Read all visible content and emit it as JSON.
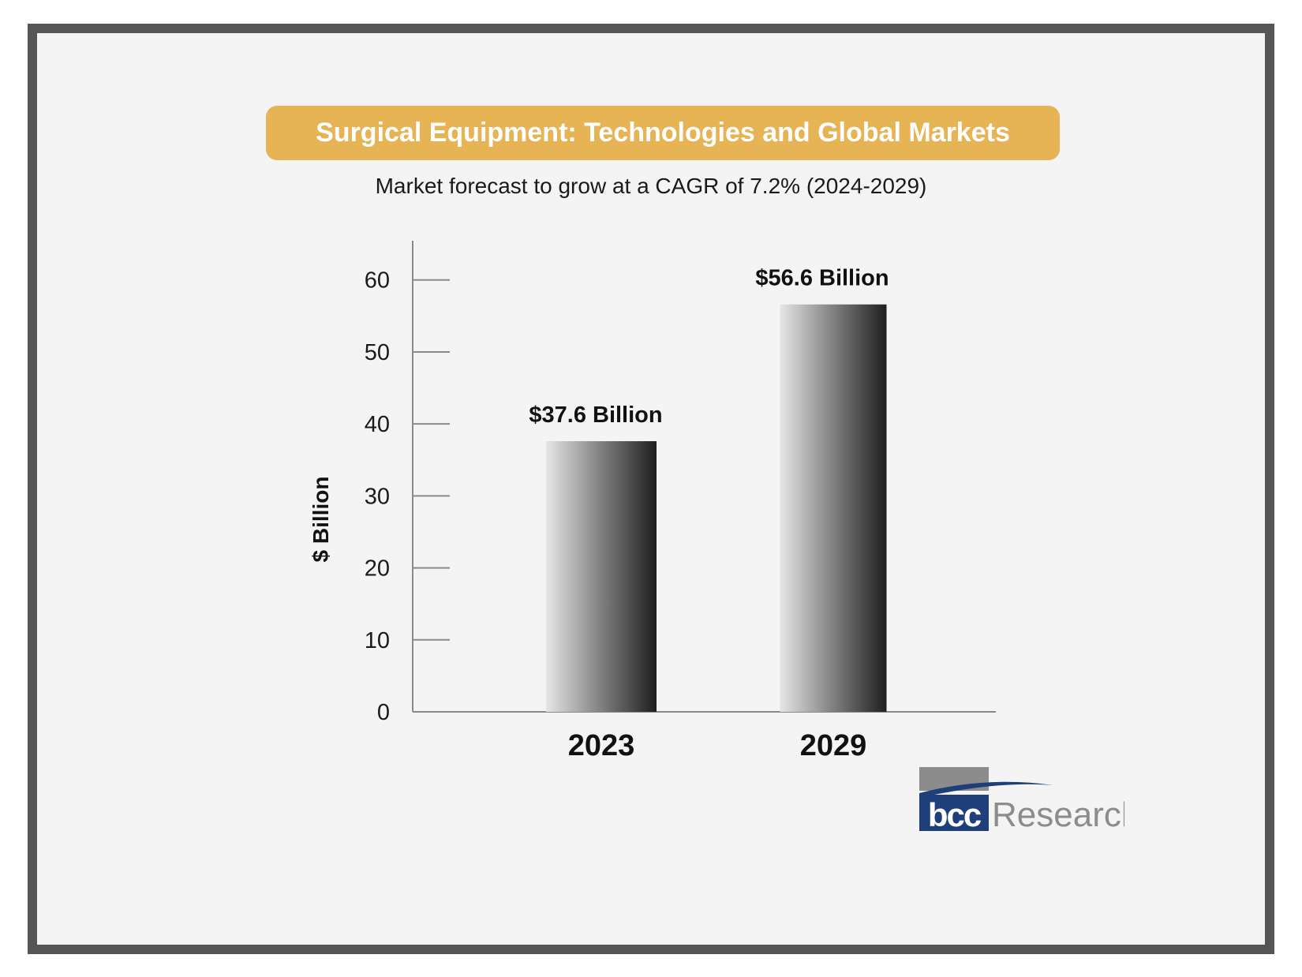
{
  "chart_data": {
    "type": "bar",
    "title": "Surgical Equipment: Technologies and Global Markets",
    "subtitle": "Market forecast to grow at a CAGR of 7.2% (2024-2029)",
    "ylabel": "$ Billion",
    "xlabel": "",
    "categories": [
      "2023",
      "2029"
    ],
    "values": [
      37.6,
      56.6
    ],
    "data_labels": [
      "$37.6 Billion",
      "$56.6  Billion"
    ],
    "yticks": [
      0,
      10,
      20,
      30,
      40,
      50,
      60
    ],
    "ylim": [
      0,
      66
    ],
    "grid": false,
    "legend": "none"
  },
  "colors": {
    "banner": "#e6b355",
    "frame": "#555555",
    "background": "#f4f4f4",
    "bar_light": "#e6e6e6",
    "bar_dark": "#1e1e1e",
    "logo_blue": "#1f3f7a",
    "logo_gray": "#8c8c8c"
  },
  "logo": {
    "mark": "bcc",
    "word": "Research"
  }
}
